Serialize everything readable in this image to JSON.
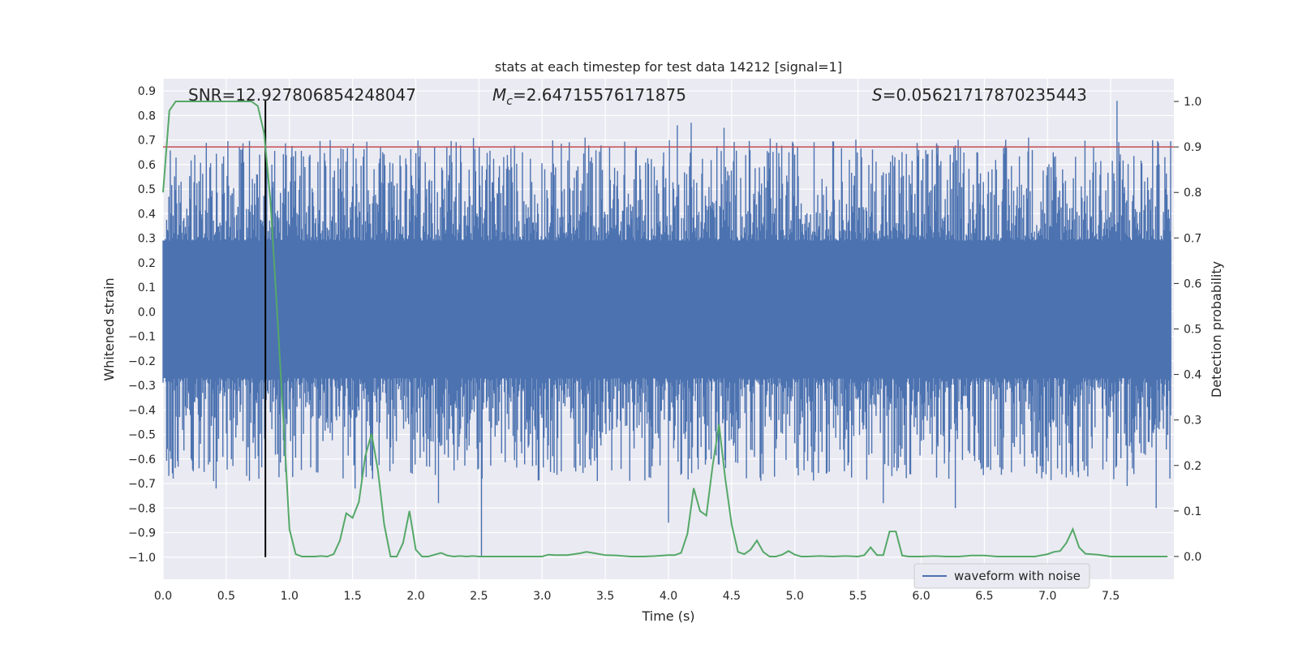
{
  "chart_data": {
    "type": "line",
    "title": "stats at each timestep for test data 14212 [signal=1]",
    "xlabel": "Time (s)",
    "ylabel": "Whitened strain",
    "y2label": "Detection probability",
    "xlim": [
      0.0,
      8.0
    ],
    "ylim": [
      -1.09,
      0.95
    ],
    "y2lim": [
      -0.05,
      1.05
    ],
    "x_ticks": [
      "0.0",
      "0.5",
      "1.0",
      "1.5",
      "2.0",
      "2.5",
      "3.0",
      "3.5",
      "4.0",
      "4.5",
      "5.0",
      "5.5",
      "6.0",
      "6.5",
      "7.0",
      "7.5"
    ],
    "y_ticks": [
      "0.9",
      "0.8",
      "0.7",
      "0.6",
      "0.5",
      "0.4",
      "0.3",
      "0.2",
      "0.1",
      "0.0",
      "-0.1",
      "-0.2",
      "-0.3",
      "-0.4",
      "-0.5",
      "-0.6",
      "-0.7",
      "-0.8",
      "-0.9",
      "-1.0"
    ],
    "y2_ticks": [
      "1.0",
      "0.9",
      "0.8",
      "0.7",
      "0.6",
      "0.5",
      "0.4",
      "0.3",
      "0.2",
      "0.1",
      "0.0"
    ],
    "annotations": {
      "snr": "SNR=12.927806854248047",
      "mc_symbol": "M",
      "mc_sub": "c",
      "mc_value": "=2.64715576171875",
      "s_symbol": "S",
      "s_value": "=0.05621717870235443"
    },
    "threshold": {
      "y2_value": 0.9,
      "color": "#c44e52"
    },
    "merger_marker": {
      "x": 0.81,
      "y_from": -1.0,
      "y_to": 0.86,
      "color": "#000000"
    },
    "waveform": {
      "name": "waveform with noise",
      "color": "#4c72b0",
      "band_min": -0.27,
      "band_max": 0.29,
      "spikes": [
        {
          "x": 0.08,
          "y": -0.68
        },
        {
          "x": 0.4,
          "y": -0.69
        },
        {
          "x": 0.42,
          "y": -0.72
        },
        {
          "x": 1.52,
          "y": -0.72
        },
        {
          "x": 1.82,
          "y": -0.62
        },
        {
          "x": 2.18,
          "y": -0.78
        },
        {
          "x": 2.52,
          "y": -1.0
        },
        {
          "x": 2.56,
          "y": 0.58
        },
        {
          "x": 3.34,
          "y": 0.71
        },
        {
          "x": 4.0,
          "y": -0.86
        },
        {
          "x": 4.07,
          "y": 0.76
        },
        {
          "x": 4.18,
          "y": 0.77
        },
        {
          "x": 4.44,
          "y": 0.75
        },
        {
          "x": 5.7,
          "y": -0.78
        },
        {
          "x": 6.27,
          "y": -0.8
        },
        {
          "x": 6.85,
          "y": 0.71
        },
        {
          "x": 7.55,
          "y": 0.86
        },
        {
          "x": 7.86,
          "y": -0.8
        },
        {
          "x": 7.63,
          "y": -0.71
        },
        {
          "x": 5.98,
          "y": 0.66
        }
      ]
    },
    "probability": {
      "name": "detection probability",
      "color": "#55a868",
      "x": [
        0.0,
        0.05,
        0.1,
        0.15,
        0.2,
        0.25,
        0.3,
        0.35,
        0.4,
        0.45,
        0.5,
        0.55,
        0.6,
        0.65,
        0.7,
        0.75,
        0.8,
        0.85,
        0.9,
        0.95,
        1.0,
        1.05,
        1.1,
        1.15,
        1.2,
        1.25,
        1.3,
        1.35,
        1.4,
        1.45,
        1.5,
        1.55,
        1.6,
        1.65,
        1.7,
        1.75,
        1.8,
        1.85,
        1.9,
        1.95,
        2.0,
        2.05,
        2.1,
        2.15,
        2.2,
        2.25,
        2.3,
        2.35,
        2.4,
        2.45,
        2.5,
        2.55,
        2.6,
        2.7,
        2.8,
        2.9,
        3.0,
        3.05,
        3.1,
        3.2,
        3.3,
        3.35,
        3.4,
        3.5,
        3.6,
        3.7,
        3.8,
        3.9,
        4.0,
        4.05,
        4.1,
        4.15,
        4.2,
        4.25,
        4.3,
        4.35,
        4.4,
        4.45,
        4.5,
        4.55,
        4.6,
        4.65,
        4.7,
        4.75,
        4.8,
        4.85,
        4.9,
        4.95,
        5.0,
        5.05,
        5.1,
        5.2,
        5.3,
        5.4,
        5.5,
        5.55,
        5.6,
        5.65,
        5.7,
        5.75,
        5.8,
        5.85,
        5.9,
        6.0,
        6.1,
        6.2,
        6.3,
        6.4,
        6.5,
        6.6,
        6.7,
        6.8,
        6.9,
        7.0,
        7.05,
        7.1,
        7.15,
        7.2,
        7.25,
        7.3,
        7.4,
        7.5,
        7.6,
        7.7,
        7.8,
        7.9,
        7.95
      ],
      "y": [
        0.8,
        0.98,
        1.0,
        1.0,
        1.0,
        1.0,
        1.0,
        1.0,
        1.0,
        1.0,
        1.0,
        1.0,
        1.0,
        1.0,
        1.0,
        0.99,
        0.93,
        0.78,
        0.55,
        0.31,
        0.06,
        0.005,
        0.0,
        0.0,
        0.0,
        0.001,
        0.0,
        0.005,
        0.035,
        0.095,
        0.085,
        0.12,
        0.22,
        0.27,
        0.19,
        0.07,
        0.0,
        0.0,
        0.03,
        0.1,
        0.015,
        0.0,
        0.0,
        0.004,
        0.008,
        0.002,
        0.0,
        0.001,
        0.0,
        0.001,
        0.0,
        0.0,
        0.0,
        0.0,
        0.0,
        0.0,
        0.0,
        0.004,
        0.003,
        0.003,
        0.007,
        0.01,
        0.008,
        0.003,
        0.002,
        0.0,
        0.0,
        0.001,
        0.003,
        0.003,
        0.008,
        0.05,
        0.15,
        0.1,
        0.09,
        0.2,
        0.29,
        0.17,
        0.07,
        0.01,
        0.005,
        0.015,
        0.035,
        0.01,
        0.0,
        0.0,
        0.004,
        0.012,
        0.004,
        0.0,
        0.0,
        0.001,
        0.0,
        0.001,
        0.0,
        0.003,
        0.02,
        0.003,
        0.003,
        0.055,
        0.055,
        0.002,
        0.0,
        0.0,
        0.001,
        0.0,
        0.0,
        0.002,
        0.002,
        0.0,
        0.0,
        0.0,
        0.0,
        0.005,
        0.01,
        0.012,
        0.03,
        0.06,
        0.02,
        0.006,
        0.004,
        0.0,
        0.0,
        0.0,
        0.0,
        0.0,
        0.0
      ]
    },
    "legend": {
      "label": "waveform with noise",
      "position": "lower-right"
    }
  }
}
